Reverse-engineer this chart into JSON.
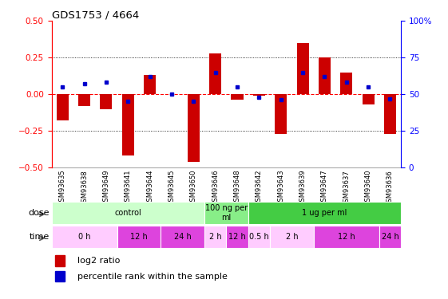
{
  "title": "GDS1753 / 4664",
  "samples": [
    "GSM93635",
    "GSM93638",
    "GSM93649",
    "GSM93641",
    "GSM93644",
    "GSM93645",
    "GSM93650",
    "GSM93646",
    "GSM93648",
    "GSM93642",
    "GSM93643",
    "GSM93639",
    "GSM93647",
    "GSM93637",
    "GSM93640",
    "GSM93636"
  ],
  "log2_ratio": [
    -0.18,
    -0.08,
    -0.1,
    -0.42,
    0.13,
    0.0,
    -0.46,
    0.28,
    -0.04,
    -0.01,
    -0.27,
    0.35,
    0.25,
    0.15,
    -0.07,
    -0.27
  ],
  "pct_rank": [
    55,
    57,
    58,
    45,
    62,
    50,
    45,
    65,
    55,
    48,
    46,
    65,
    62,
    58,
    55,
    47
  ],
  "ylim": [
    -0.5,
    0.5
  ],
  "yticks_left": [
    -0.5,
    -0.25,
    0.0,
    0.25,
    0.5
  ],
  "yticks_right": [
    0,
    25,
    50,
    75,
    100
  ],
  "bar_color": "#cc0000",
  "dot_color": "#0000cc",
  "bg_color": "#ffffff",
  "dose_rects": [
    {
      "start": 0,
      "end": 7,
      "color": "#ccffcc",
      "label": "control"
    },
    {
      "start": 7,
      "end": 9,
      "color": "#88ee88",
      "label": "100 ng per\nml"
    },
    {
      "start": 9,
      "end": 16,
      "color": "#44cc44",
      "label": "1 ug per ml"
    }
  ],
  "time_rects": [
    {
      "start": 0,
      "end": 3,
      "color": "#ffccff",
      "label": "0 h"
    },
    {
      "start": 3,
      "end": 5,
      "color": "#dd44dd",
      "label": "12 h"
    },
    {
      "start": 5,
      "end": 7,
      "color": "#dd44dd",
      "label": "24 h"
    },
    {
      "start": 7,
      "end": 8,
      "color": "#ffccff",
      "label": "2 h"
    },
    {
      "start": 8,
      "end": 9,
      "color": "#dd44dd",
      "label": "12 h"
    },
    {
      "start": 9,
      "end": 10,
      "color": "#ffccff",
      "label": "0.5 h"
    },
    {
      "start": 10,
      "end": 12,
      "color": "#ffccff",
      "label": "2 h"
    },
    {
      "start": 12,
      "end": 15,
      "color": "#dd44dd",
      "label": "12 h"
    },
    {
      "start": 15,
      "end": 16,
      "color": "#dd44dd",
      "label": "24 h"
    }
  ],
  "dose_label": "dose",
  "time_label": "time",
  "legend_bar_label": "log2 ratio",
  "legend_dot_label": "percentile rank within the sample"
}
